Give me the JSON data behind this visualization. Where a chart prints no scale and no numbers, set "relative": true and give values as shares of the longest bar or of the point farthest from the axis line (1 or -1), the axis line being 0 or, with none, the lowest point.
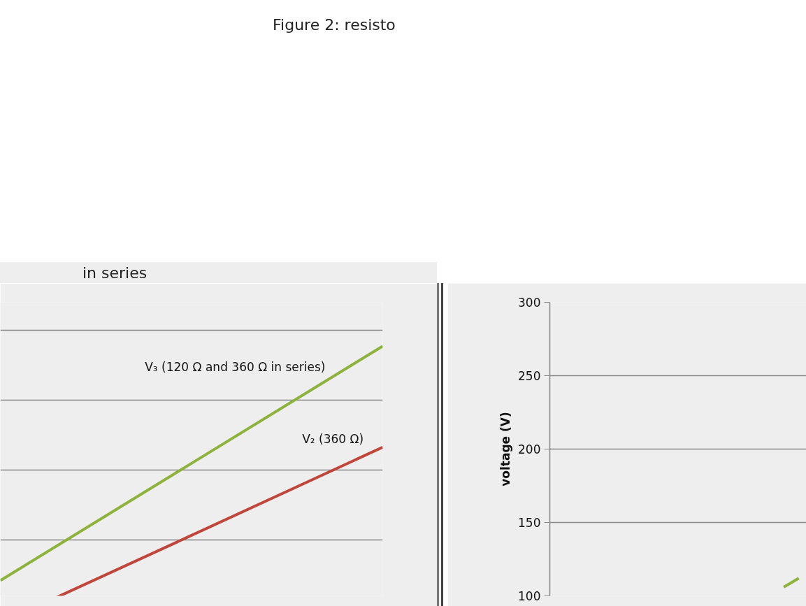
{
  "chart_data": [
    {
      "type": "line",
      "title": "Figure 2: resisto",
      "subtitle": "in series",
      "relative": true,
      "grid": "y",
      "tick_labels": false,
      "categories": [
        null,
        null,
        null
      ],
      "series": [
        {
          "name": "V₃ (120 Ω and 360 Ω in series)",
          "color": "#8db33c",
          "values": [
            0.154,
            0.577,
            1.0
          ]
        },
        {
          "name": "V₂ (360 Ω)",
          "color": "#c0453a",
          "values": [
            0.0,
            0.317,
            0.635
          ]
        }
      ]
    },
    {
      "type": "line",
      "ylabel": "voltage (V)",
      "ylim": [
        100,
        300
      ],
      "yticks": [
        100,
        150,
        200,
        250,
        300
      ],
      "grid": "y",
      "tick_labels": "y",
      "categories": [
        null,
        null,
        null,
        null,
        null,
        null,
        null,
        null,
        null,
        null,
        null,
        null,
        null,
        null,
        null,
        null,
        null
      ],
      "series": [
        {
          "color": "#8db33c",
          "values": [
            null,
            null,
            null,
            null,
            null,
            null,
            null,
            null,
            null,
            null,
            null,
            null,
            null,
            null,
            null,
            106,
            112
          ]
        }
      ]
    }
  ]
}
